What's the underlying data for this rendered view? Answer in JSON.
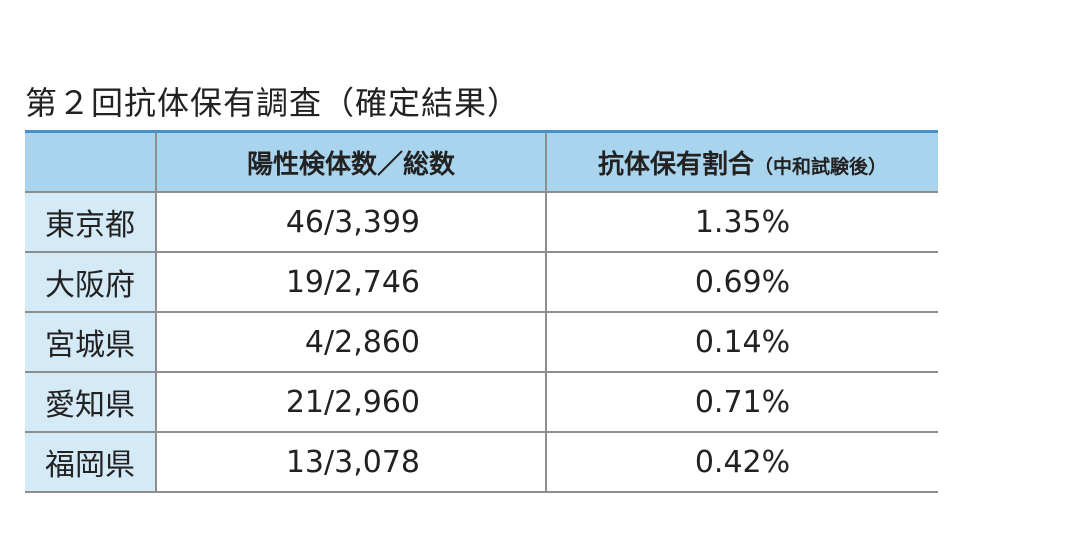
{
  "title": "第２回抗体保有調査（確定結果）",
  "table": {
    "header": [
      {
        "text": "陽性検体数／総数"
      },
      {
        "text": "抗体保有割合",
        "note": "（中和試験後）"
      }
    ],
    "rows": [
      [
        "東京都",
        "46/3,399",
        "1.35%"
      ],
      [
        "大阪府",
        "19/2,746",
        "0.69%"
      ],
      [
        "宮城県",
        "4/2,860",
        "0.14%"
      ],
      [
        "愛知県",
        "21/2,960",
        "0.71%"
      ],
      [
        "福岡県",
        "13/3,078",
        "0.42%"
      ]
    ]
  }
}
